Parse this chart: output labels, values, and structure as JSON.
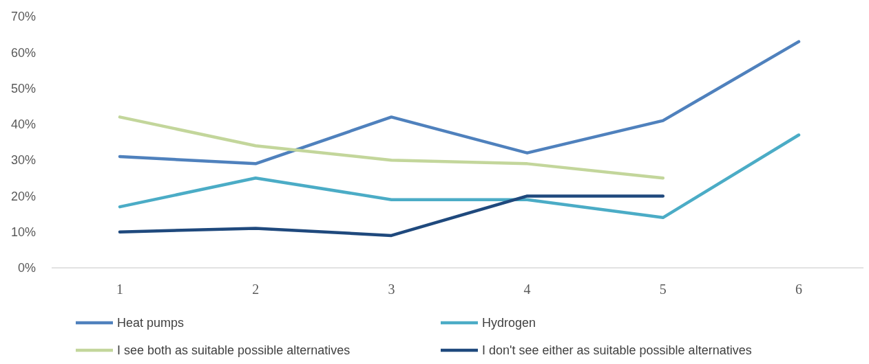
{
  "chart_data": {
    "type": "line",
    "categories": [
      "1",
      "2",
      "3",
      "4",
      "5",
      "6"
    ],
    "ylim": [
      0,
      70
    ],
    "yticks": [
      {
        "value": 0,
        "label": "0%"
      },
      {
        "value": 10,
        "label": "10%"
      },
      {
        "value": 20,
        "label": "20%"
      },
      {
        "value": 30,
        "label": "30%"
      },
      {
        "value": 40,
        "label": "40%"
      },
      {
        "value": 50,
        "label": "50%"
      },
      {
        "value": 60,
        "label": "60%"
      },
      {
        "value": 70,
        "label": "70%"
      }
    ],
    "grid": false,
    "legend": "bottom",
    "marker": "none",
    "line_style": "solid",
    "series": [
      {
        "name": "Heat pumps",
        "color": "#4f81bd",
        "values": [
          31,
          29,
          42,
          32,
          41,
          63
        ]
      },
      {
        "name": "Hydrogen",
        "color": "#4bacc6",
        "values": [
          17,
          25,
          19,
          19,
          14,
          37
        ]
      },
      {
        "name": "I see both as suitable possible alternatives",
        "color": "#c3d69b",
        "values": [
          42,
          34,
          30,
          29,
          25,
          null
        ]
      },
      {
        "name": "I don't see either as suitable possible alternatives",
        "color": "#1f497d",
        "values": [
          10,
          11,
          9,
          20,
          20,
          null
        ]
      }
    ]
  }
}
